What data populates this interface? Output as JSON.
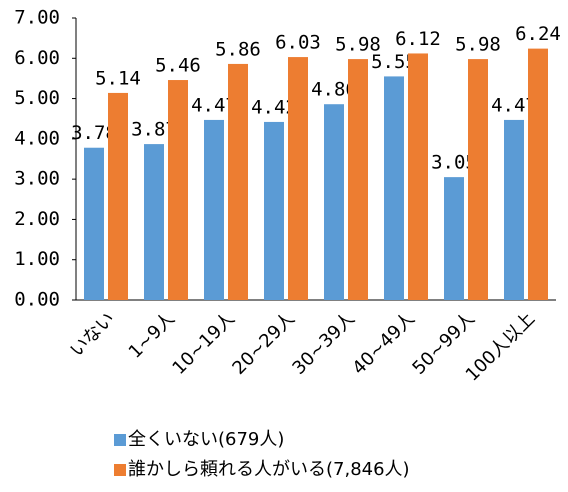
{
  "chart_data": {
    "type": "bar",
    "categories": [
      "いない",
      "1~9人",
      "10~19人",
      "20~29人",
      "30~39人",
      "40~49人",
      "50~99人",
      "100人以上"
    ],
    "series": [
      {
        "name": "全くいない(679人)",
        "color": "#5b9bd5",
        "values": [
          3.78,
          3.87,
          4.47,
          4.42,
          4.86,
          5.55,
          3.05,
          4.47
        ]
      },
      {
        "name": "誰かしら頼れる人がいる(7,846人)",
        "color": "#ed7d31",
        "values": [
          5.14,
          5.46,
          5.86,
          6.03,
          5.98,
          6.12,
          5.98,
          6.24
        ]
      }
    ],
    "ylim": [
      0,
      7
    ],
    "yticks": [
      {
        "value": 0,
        "label": "0.00"
      },
      {
        "value": 1,
        "label": "1.00"
      },
      {
        "value": 2,
        "label": "2.00"
      },
      {
        "value": 3,
        "label": "3.00"
      },
      {
        "value": 4,
        "label": "4.00"
      },
      {
        "value": 5,
        "label": "5.00"
      },
      {
        "value": 6,
        "label": "6.00"
      },
      {
        "value": 7,
        "label": "7.00"
      }
    ],
    "grid": false,
    "legend": "bottom"
  }
}
